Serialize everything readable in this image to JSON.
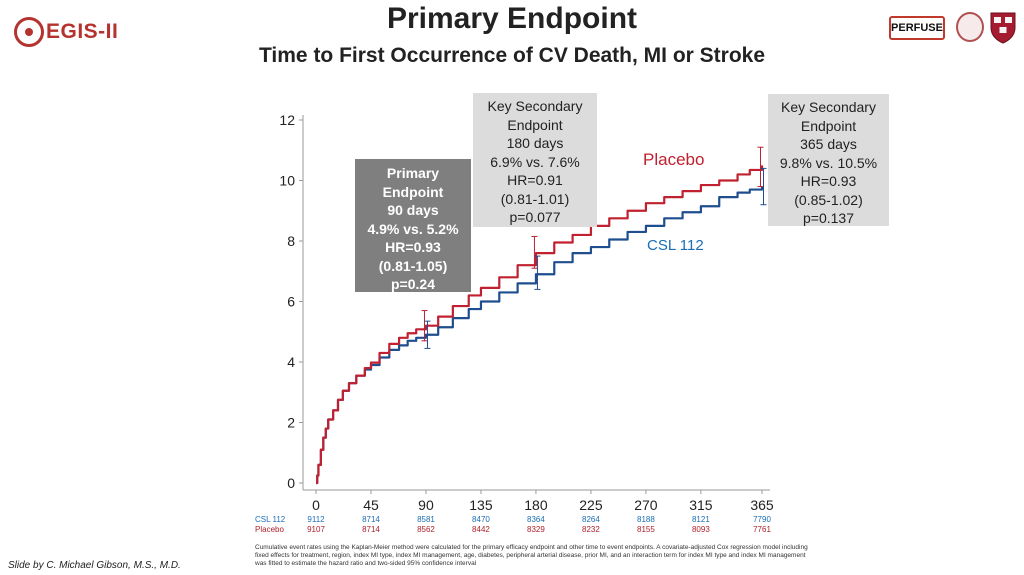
{
  "header": {
    "title": "Primary Endpoint",
    "subtitle": "Time to First Occurrence of CV Death, MI or Stroke",
    "logo_left": "EGIS-II",
    "logo_right_text": "PERFUSE"
  },
  "chart_data": {
    "type": "line",
    "title": "Primary Endpoint",
    "subtitle": "Time to First Occurrence of CV Death, MI or Stroke",
    "xlabel": "",
    "ylabel": "",
    "xlim": [
      0,
      365
    ],
    "ylim": [
      0,
      12
    ],
    "x_ticks": [
      "0",
      "45",
      "90",
      "135",
      "180",
      "225",
      "270",
      "315",
      "365"
    ],
    "y_ticks": [
      "0",
      "2",
      "4",
      "6",
      "8",
      "10",
      "12"
    ],
    "grid": false,
    "series": [
      {
        "name": "Placebo",
        "color": "#c0202f",
        "x": [
          0,
          1,
          2,
          4,
          6,
          8,
          10,
          14,
          18,
          22,
          27,
          33,
          40,
          45,
          52,
          60,
          68,
          75,
          82,
          90,
          100,
          112,
          125,
          135,
          150,
          165,
          180,
          195,
          210,
          225,
          240,
          255,
          270,
          285,
          300,
          315,
          330,
          345,
          355,
          365
        ],
        "y": [
          0,
          0.25,
          0.6,
          1.1,
          1.5,
          1.8,
          2.1,
          2.4,
          2.75,
          3.05,
          3.3,
          3.55,
          3.8,
          3.98,
          4.3,
          4.6,
          4.8,
          4.95,
          5.08,
          5.2,
          5.5,
          5.85,
          6.2,
          6.45,
          6.8,
          7.2,
          7.6,
          7.95,
          8.2,
          8.5,
          8.75,
          9.0,
          9.25,
          9.45,
          9.65,
          9.85,
          10.0,
          10.2,
          10.35,
          10.5
        ]
      },
      {
        "name": "CSL 112",
        "color": "#1f4e8f",
        "x": [
          0,
          1,
          2,
          4,
          6,
          8,
          10,
          14,
          18,
          22,
          27,
          33,
          40,
          45,
          52,
          60,
          68,
          75,
          82,
          90,
          100,
          112,
          125,
          135,
          150,
          165,
          180,
          195,
          210,
          225,
          240,
          255,
          270,
          285,
          300,
          315,
          330,
          345,
          355,
          365
        ],
        "y": [
          0,
          0.25,
          0.6,
          1.1,
          1.5,
          1.8,
          2.1,
          2.4,
          2.75,
          3.05,
          3.3,
          3.55,
          3.75,
          3.9,
          4.15,
          4.4,
          4.55,
          4.7,
          4.8,
          4.9,
          5.15,
          5.45,
          5.75,
          6.0,
          6.3,
          6.6,
          6.9,
          7.3,
          7.6,
          7.8,
          8.05,
          8.3,
          8.5,
          8.75,
          8.95,
          9.15,
          9.45,
          9.6,
          9.7,
          9.8
        ]
      }
    ],
    "error_bars": [
      {
        "series": "Placebo",
        "x": 90,
        "low": 4.7,
        "high": 5.7
      },
      {
        "series": "CSL 112",
        "x": 90,
        "low": 4.45,
        "high": 5.35
      },
      {
        "series": "Placebo",
        "x": 180,
        "low": 7.1,
        "high": 8.15
      },
      {
        "series": "CSL 112",
        "x": 180,
        "low": 6.4,
        "high": 7.5
      },
      {
        "series": "Placebo",
        "x": 365,
        "low": 9.8,
        "high": 11.1
      },
      {
        "series": "CSL 112",
        "x": 365,
        "low": 9.2,
        "high": 10.4
      }
    ],
    "series_labels": {
      "placebo": "Placebo",
      "csl": "CSL 112"
    }
  },
  "annotations": {
    "primary": [
      "Primary",
      "Endpoint",
      "90 days",
      "4.9% vs. 5.2%",
      "HR=0.93",
      "(0.81-1.05)",
      "p=0.24"
    ],
    "secondary_180": [
      "Key Secondary",
      "Endpoint",
      "180 days",
      "6.9% vs. 7.6%",
      "HR=0.91",
      "(0.81-1.01)",
      "p=0.077"
    ],
    "secondary_365": [
      "Key Secondary",
      "Endpoint",
      "365 days",
      "9.8% vs. 10.5%",
      "HR=0.93",
      "(0.85-1.02)",
      "p=0.137"
    ]
  },
  "risk_table": {
    "csl_label": "CSL 112",
    "placebo_label": "Placebo",
    "csl": [
      "9112",
      "8714",
      "8581",
      "8470",
      "8364",
      "8264",
      "8188",
      "8121",
      "7790"
    ],
    "placebo": [
      "9107",
      "8714",
      "8562",
      "8442",
      "8329",
      "8232",
      "8155",
      "8093",
      "7761"
    ]
  },
  "footnote": "Cumulative event rates using the Kaplan-Meier method were calculated for the primary efficacy endpoint and other time to event endpoints. A covariate-adjusted Cox regression model including fixed effects for treatment, region, index MI type, index MI management, age, diabetes, peripheral arterial disease, prior MI, and an interaction term for index MI type and index MI management was fitted to estimate the hazard ratio and two-sided 95% confidence interval",
  "credit": "Slide by C. Michael Gibson, M.S., M.D."
}
